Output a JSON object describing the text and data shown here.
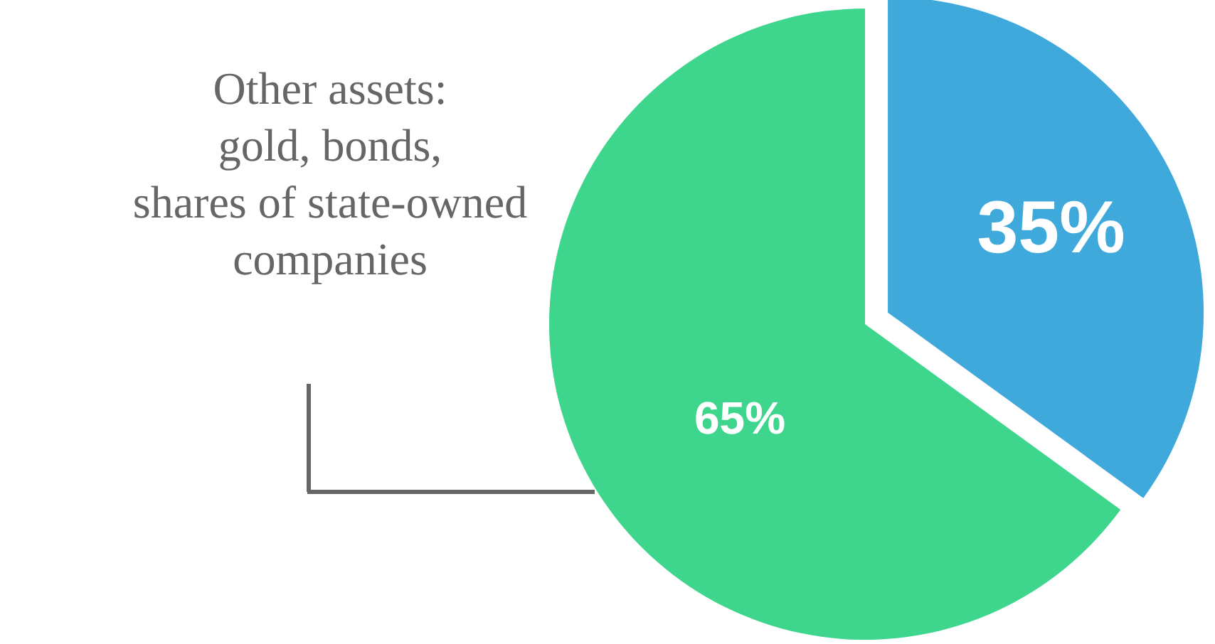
{
  "chart_data": {
    "type": "pie",
    "categories": [
      null,
      "Other assets:\ngold, bonds,\nshares of state-owned\ncompanies"
    ],
    "values": [
      35,
      65
    ],
    "colors": [
      "#3fa9dc",
      "#3dd68c"
    ],
    "value_labels": [
      "35%",
      "65%"
    ]
  }
}
